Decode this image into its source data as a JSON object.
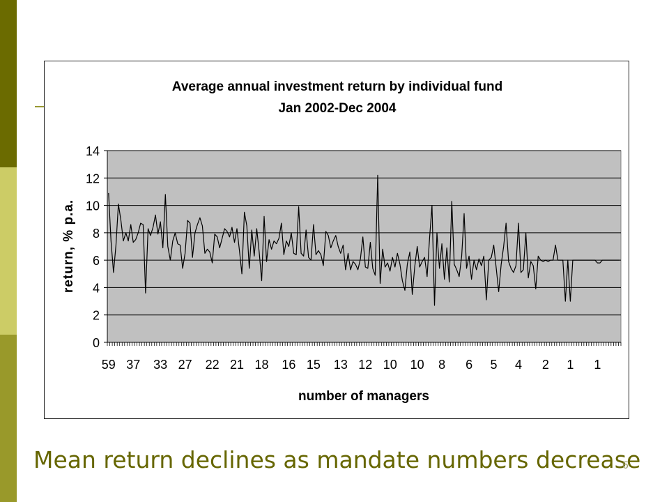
{
  "slide": {
    "caption": "Mean return declines as mandate numbers decrease",
    "page_number": "6"
  },
  "theme": {
    "band_top": "#6b6b00",
    "band_mid": "#cccc66",
    "band_bottom": "#99992a",
    "plot_background": "#c0c0c0",
    "series_color": "#000000"
  },
  "chart_data": {
    "type": "line",
    "title": "Average annual investment return by individual fund",
    "subtitle": "Jan 2002-Dec 2004",
    "xlabel": "number of managers",
    "ylabel": "return, % p.a.",
    "ylim": [
      0,
      14
    ],
    "yticks": [
      0,
      2,
      4,
      6,
      8,
      10,
      12,
      14
    ],
    "grid": "horizontal",
    "legend": "none",
    "x_tick_labels": [
      "59",
      "37",
      "33",
      "27",
      "22",
      "21",
      "18",
      "16",
      "15",
      "13",
      "12",
      "10",
      "10",
      "8",
      "6",
      "5",
      "4",
      "2",
      "1",
      "1"
    ],
    "series": [
      {
        "values": [
          10.9,
          7.4,
          5.1,
          7.1,
          10.1,
          8.9,
          7.4,
          8.0,
          7.4,
          8.6,
          7.3,
          7.5,
          8.0,
          8.7,
          8.6,
          3.6,
          8.3,
          7.8,
          8.4,
          9.3,
          7.9,
          8.8,
          6.9,
          10.8,
          7.0,
          6.0,
          7.4,
          8.0,
          7.2,
          7.1,
          5.4,
          6.5,
          8.9,
          8.7,
          6.2,
          8.0,
          8.6,
          9.1,
          8.5,
          6.5,
          6.8,
          6.6,
          5.8,
          7.9,
          7.7,
          6.9,
          7.6,
          8.3,
          8.1,
          7.7,
          8.4,
          7.3,
          8.3,
          6.7,
          5.0,
          9.5,
          8.5,
          5.4,
          8.2,
          6.3,
          8.3,
          6.6,
          4.5,
          9.2,
          5.9,
          7.5,
          6.8,
          7.4,
          7.2,
          7.6,
          8.7,
          6.4,
          7.4,
          7.0,
          8.0,
          6.5,
          6.4,
          9.9,
          6.5,
          6.3,
          8.2,
          6.2,
          6.0,
          8.6,
          6.4,
          6.7,
          6.4,
          5.6,
          8.1,
          7.8,
          6.9,
          7.4,
          7.8,
          7.0,
          6.5,
          7.1,
          5.3,
          6.5,
          5.3,
          5.9,
          5.7,
          5.3,
          6.1,
          7.7,
          5.5,
          5.4,
          7.3,
          5.4,
          4.9,
          12.2,
          4.3,
          6.8,
          5.5,
          5.8,
          5.2,
          6.2,
          5.5,
          6.5,
          5.7,
          4.5,
          3.8,
          5.7,
          6.6,
          3.5,
          5.5,
          7.0,
          5.5,
          5.9,
          6.2,
          4.8,
          7.6,
          10.0,
          2.7,
          8.0,
          5.4,
          7.2,
          4.6,
          6.9,
          4.4,
          10.3,
          5.7,
          5.3,
          4.8,
          6.3,
          9.4,
          5.4,
          6.3,
          4.6,
          6.0,
          5.3,
          6.1,
          5.6,
          6.3,
          3.1,
          6.0,
          6.2,
          7.1,
          5.4,
          3.7,
          5.7,
          7.0,
          8.7,
          5.9,
          5.4,
          5.1,
          5.6,
          8.7,
          5.1,
          5.3,
          8.0,
          4.7,
          5.9,
          5.6,
          3.9,
          6.3,
          6.0,
          5.9,
          6.0,
          5.9,
          6.0,
          6.0,
          7.1,
          6.0,
          6.0,
          6.0,
          3.0,
          6.0,
          3.0,
          6.0,
          6.0,
          6.0,
          6.0,
          6.0,
          6.0,
          6.0,
          6.0,
          6.0,
          6.0,
          5.8,
          5.8,
          6.0,
          6.0,
          6.0,
          6.0,
          6.0,
          6.0,
          6.0,
          6.0
        ]
      }
    ]
  }
}
